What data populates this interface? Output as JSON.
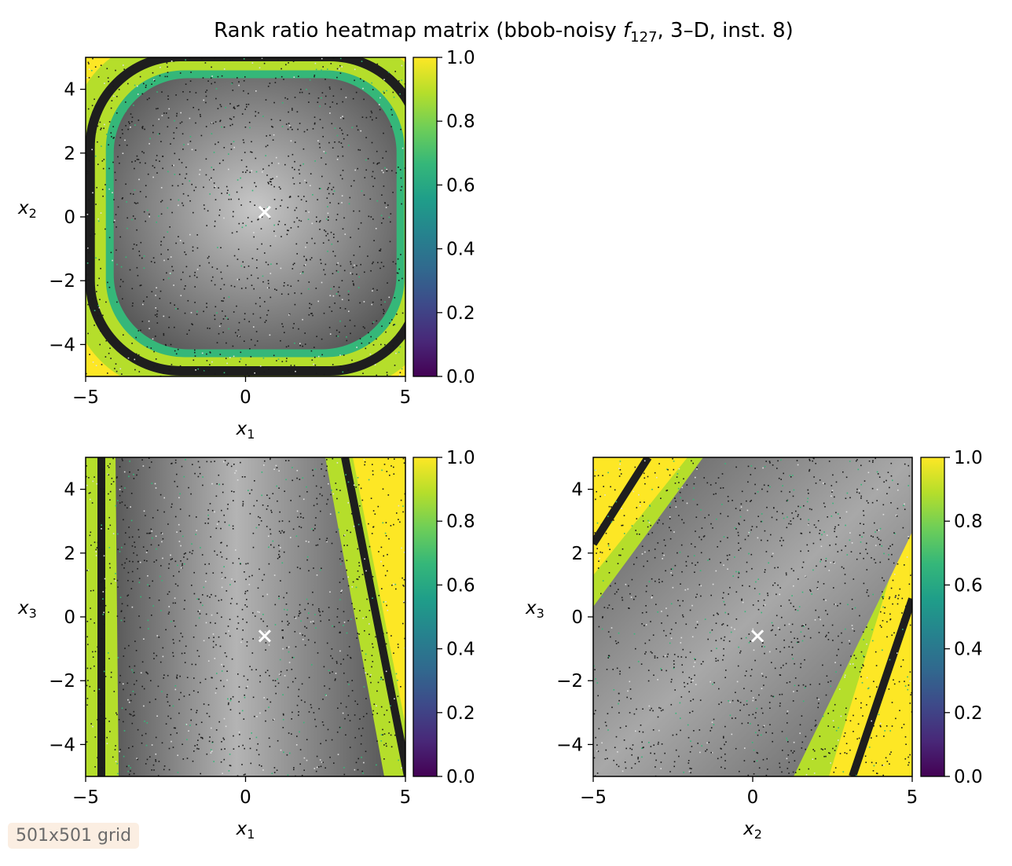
{
  "figure": {
    "title_prefix": "Rank ratio heatmap matrix (bbob-noisy ",
    "title_f": "f",
    "title_sub": "127",
    "title_suffix": ", 3–D, inst. 8)",
    "grid_label": "501x501 grid"
  },
  "colors": {
    "viridis": [
      "#440154",
      "#482878",
      "#3e4989",
      "#31688e",
      "#26828e",
      "#1f9e89",
      "#35b779",
      "#6ece58",
      "#b5de2b",
      "#fde725"
    ],
    "optimum_marker": "#ffffff",
    "gray_center": "#c8c8c8",
    "gray_edge": "#5a5a5a"
  },
  "chart_data": [
    {
      "type": "heatmap",
      "panel": "x1-x2",
      "xlabel": "x",
      "xlabel_sub": "1",
      "ylabel": "x",
      "ylabel_sub": "2",
      "xlim": [
        -5,
        5
      ],
      "ylim": [
        -5,
        5
      ],
      "xticks": [
        -5,
        0,
        5
      ],
      "yticks": [
        -4,
        -2,
        0,
        2,
        4
      ],
      "optimum": [
        0.6,
        0.15
      ],
      "colorbar": {
        "min": 0.0,
        "max": 1.0,
        "ticks": [
          0.0,
          0.2,
          0.4,
          0.6,
          0.8,
          1.0
        ],
        "colormap": "viridis"
      }
    },
    {
      "type": "heatmap",
      "panel": "x1-x3",
      "xlabel": "x",
      "xlabel_sub": "1",
      "ylabel": "x",
      "ylabel_sub": "3",
      "xlim": [
        -5,
        5
      ],
      "ylim": [
        -5,
        5
      ],
      "xticks": [
        -5,
        0,
        5
      ],
      "yticks": [
        -4,
        -2,
        0,
        2,
        4
      ],
      "optimum": [
        0.6,
        -0.6
      ],
      "colorbar": {
        "min": 0.0,
        "max": 1.0,
        "ticks": [
          0.0,
          0.2,
          0.4,
          0.6,
          0.8,
          1.0
        ],
        "colormap": "viridis"
      }
    },
    {
      "type": "heatmap",
      "panel": "x2-x3",
      "xlabel": "x",
      "xlabel_sub": "2",
      "ylabel": "x",
      "ylabel_sub": "3",
      "xlim": [
        -5,
        5
      ],
      "ylim": [
        -5,
        5
      ],
      "xticks": [
        -5,
        0,
        5
      ],
      "yticks": [
        -4,
        -2,
        0,
        2,
        4
      ],
      "optimum": [
        0.15,
        -0.6
      ],
      "colorbar": {
        "min": 0.0,
        "max": 1.0,
        "ticks": [
          0.0,
          0.2,
          0.4,
          0.6,
          0.8,
          1.0
        ],
        "colormap": "viridis"
      }
    }
  ]
}
